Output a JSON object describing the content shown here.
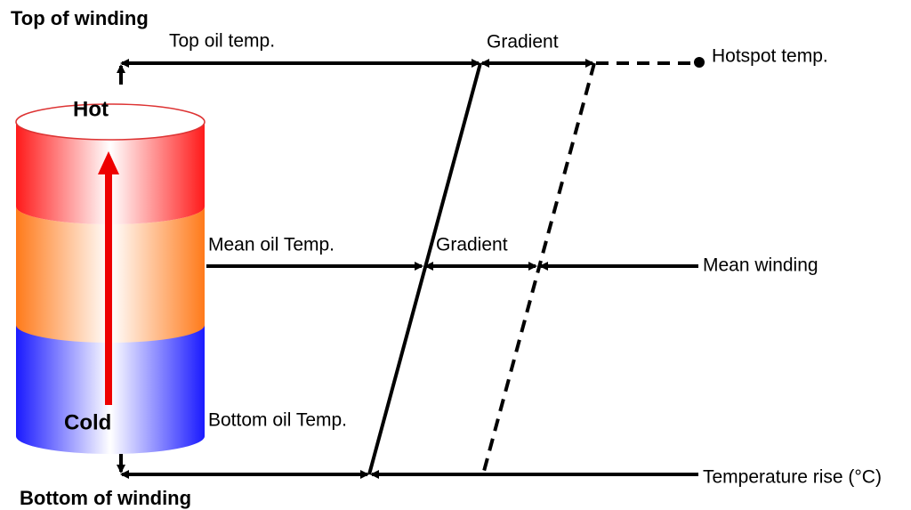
{
  "labels": {
    "top_of_winding": "Top of winding",
    "bottom_of_winding": "Bottom of winding",
    "top_oil_temp": "Top oil temp.",
    "gradient_top": "Gradient",
    "hotspot_temp": "Hotspot temp.",
    "hot": "Hot",
    "cold": "Cold",
    "mean_oil_temp": "Mean oil Temp.",
    "gradient_mean": "Gradient",
    "mean_winding": "Mean winding",
    "bottom_oil_temp": "Bottom oil Temp.",
    "temperature_rise": "Temperature rise (°C)"
  }
}
